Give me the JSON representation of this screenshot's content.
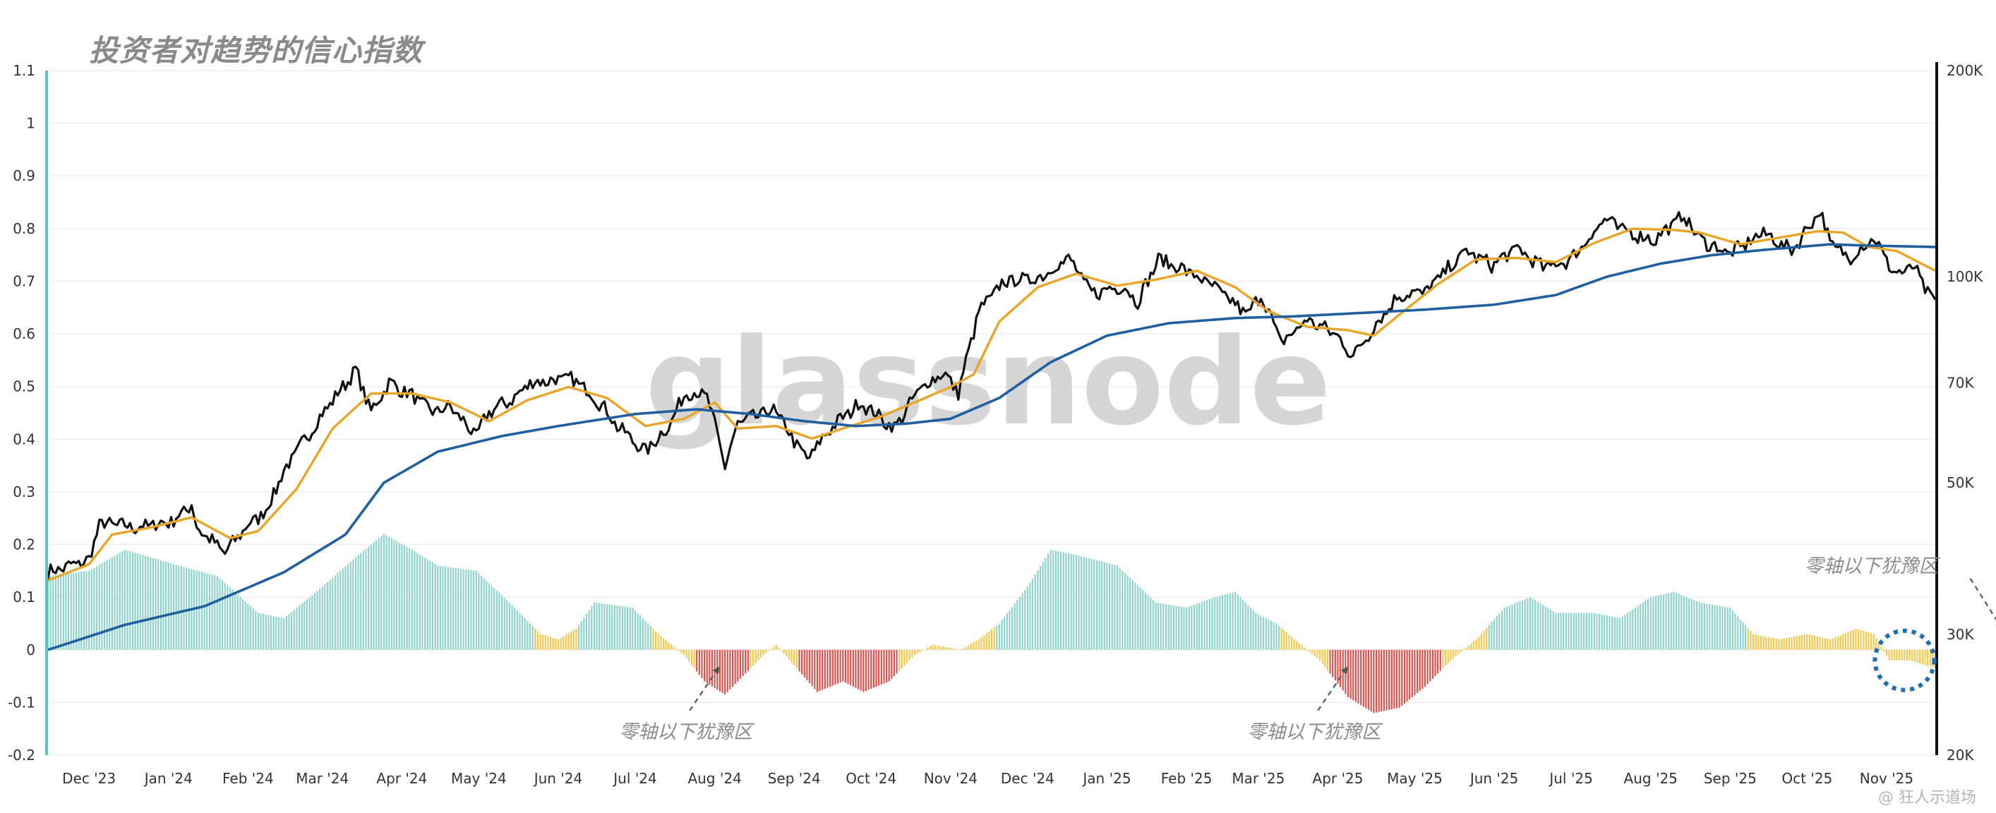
{
  "chart_data": {
    "type": "line",
    "title": "投资者对趋势的信心指数",
    "x_start": "2023-11-15",
    "x_end": "2025-11-20",
    "x_ticks": [
      "Dec '23",
      "Jan '24",
      "Feb '24",
      "Mar '24",
      "Apr '24",
      "May '24",
      "Jun '24",
      "Jul '24",
      "Aug '24",
      "Sep '24",
      "Oct '24",
      "Nov '24",
      "Dec '24",
      "Jan '25",
      "Feb '25",
      "Mar '25",
      "Apr '25",
      "May '25",
      "Jun '25",
      "Jul '25",
      "Aug '25",
      "Sep '25",
      "Oct '25",
      "Nov '25"
    ],
    "x_tick_dates": [
      "2023-12-01",
      "2024-01-01",
      "2024-02-01",
      "2024-03-01",
      "2024-04-01",
      "2024-05-01",
      "2024-06-01",
      "2024-07-01",
      "2024-08-01",
      "2024-09-01",
      "2024-10-01",
      "2024-11-01",
      "2024-12-01",
      "2025-01-01",
      "2025-02-01",
      "2025-03-01",
      "2025-04-01",
      "2025-05-01",
      "2025-06-01",
      "2025-07-01",
      "2025-08-01",
      "2025-09-01",
      "2025-10-01",
      "2025-11-01"
    ],
    "y_left": {
      "ticks": [
        "1.1",
        "1",
        "0.9",
        "0.8",
        "0.7",
        "0.6",
        "0.5",
        "0.4",
        "0.3",
        "0.2",
        "0.1",
        "0",
        "-0.1",
        "-0.2"
      ],
      "ylim": [
        -0.2,
        1.1
      ]
    },
    "y_right": {
      "ticks": [
        "200K",
        "100K",
        "70K",
        "50K",
        "30K",
        "20K"
      ],
      "tick_values": [
        200000,
        100000,
        70000,
        50000,
        30000,
        20000
      ],
      "ylim": [
        20000,
        200000
      ],
      "scale": "log"
    },
    "grid": true,
    "watermark": "glassnode",
    "colors": {
      "price": "#111111",
      "short_ma": "#e9a527",
      "long_ma": "#1f5fa0",
      "hist_positive": "#8fd3cc",
      "hist_hesitation": "#f2c94c",
      "hist_negative": "#d9534f",
      "left_axis_line": "#59c6be",
      "right_axis_line": "#111111",
      "highlight_circle": "#1f6fb2"
    },
    "series": [
      {
        "axis": "right",
        "color": "#111111",
        "points": [
          [
            "2023-11-15",
            37000
          ],
          [
            "2023-12-01",
            38500
          ],
          [
            "2023-12-05",
            43500
          ],
          [
            "2023-12-10",
            43500
          ],
          [
            "2023-12-20",
            43000
          ],
          [
            "2024-01-03",
            44000
          ],
          [
            "2024-01-10",
            46500
          ],
          [
            "2024-01-12",
            43000
          ],
          [
            "2024-01-23",
            39500
          ],
          [
            "2024-01-31",
            43000
          ],
          [
            "2024-02-08",
            45500
          ],
          [
            "2024-02-15",
            52000
          ],
          [
            "2024-02-28",
            61500
          ],
          [
            "2024-03-05",
            66000
          ],
          [
            "2024-03-14",
            73000
          ],
          [
            "2024-03-20",
            63500
          ],
          [
            "2024-03-27",
            70000
          ],
          [
            "2024-04-05",
            67000
          ],
          [
            "2024-04-13",
            63500
          ],
          [
            "2024-04-20",
            64500
          ],
          [
            "2024-04-30",
            58500
          ],
          [
            "2024-05-05",
            63500
          ],
          [
            "2024-05-15",
            66500
          ],
          [
            "2024-05-21",
            70000
          ],
          [
            "2024-06-05",
            71000
          ],
          [
            "2024-06-10",
            69500
          ],
          [
            "2024-06-18",
            65000
          ],
          [
            "2024-06-24",
            60500
          ],
          [
            "2024-07-05",
            55500
          ],
          [
            "2024-07-14",
            60500
          ],
          [
            "2024-07-21",
            68000
          ],
          [
            "2024-07-29",
            67000
          ],
          [
            "2024-08-05",
            53000
          ],
          [
            "2024-08-10",
            61000
          ],
          [
            "2024-08-24",
            64000
          ],
          [
            "2024-09-06",
            54000
          ],
          [
            "2024-09-15",
            60000
          ],
          [
            "2024-09-27",
            65500
          ],
          [
            "2024-10-10",
            60000
          ],
          [
            "2024-10-20",
            68500
          ],
          [
            "2024-10-29",
            72500
          ],
          [
            "2024-11-04",
            67800
          ],
          [
            "2024-11-12",
            89000
          ],
          [
            "2024-11-22",
            98500
          ],
          [
            "2024-12-05",
            99500
          ],
          [
            "2024-12-17",
            106500
          ],
          [
            "2024-12-26",
            94500
          ],
          [
            "2025-01-07",
            97000
          ],
          [
            "2025-01-13",
            92000
          ],
          [
            "2025-01-21",
            106000
          ],
          [
            "2025-01-31",
            102500
          ],
          [
            "2025-02-10",
            97500
          ],
          [
            "2025-02-25",
            88000
          ],
          [
            "2025-03-02",
            94500
          ],
          [
            "2025-03-10",
            80000
          ],
          [
            "2025-03-20",
            86500
          ],
          [
            "2025-03-31",
            82500
          ],
          [
            "2025-04-07",
            76500
          ],
          [
            "2025-04-15",
            84500
          ],
          [
            "2025-04-25",
            94000
          ],
          [
            "2025-05-05",
            95000
          ],
          [
            "2025-05-21",
            109000
          ],
          [
            "2025-05-31",
            104000
          ],
          [
            "2025-06-10",
            110000
          ],
          [
            "2025-06-20",
            103000
          ],
          [
            "2025-07-01",
            106000
          ],
          [
            "2025-07-14",
            121500
          ],
          [
            "2025-07-20",
            117500
          ],
          [
            "2025-08-02",
            113000
          ],
          [
            "2025-08-14",
            123000
          ],
          [
            "2025-08-20",
            113500
          ],
          [
            "2025-09-01",
            108000
          ],
          [
            "2025-09-14",
            116000
          ],
          [
            "2025-09-25",
            109000
          ],
          [
            "2025-10-06",
            125000
          ],
          [
            "2025-10-10",
            112000
          ],
          [
            "2025-10-17",
            106500
          ],
          [
            "2025-10-27",
            114000
          ],
          [
            "2025-11-04",
            101000
          ],
          [
            "2025-11-12",
            103000
          ],
          [
            "2025-11-18",
            93000
          ],
          [
            "2025-11-20",
            92000
          ]
        ]
      },
      {
        "axis": "right",
        "color": "#e9a527",
        "points": [
          [
            "2023-11-15",
            36000
          ],
          [
            "2023-12-01",
            38000
          ],
          [
            "2023-12-10",
            42000
          ],
          [
            "2023-12-25",
            43000
          ],
          [
            "2024-01-10",
            44500
          ],
          [
            "2024-01-25",
            41500
          ],
          [
            "2024-02-05",
            42500
          ],
          [
            "2024-02-20",
            49000
          ],
          [
            "2024-03-05",
            60000
          ],
          [
            "2024-03-20",
            67500
          ],
          [
            "2024-04-05",
            67500
          ],
          [
            "2024-04-20",
            65500
          ],
          [
            "2024-05-05",
            61500
          ],
          [
            "2024-05-20",
            66000
          ],
          [
            "2024-06-05",
            69000
          ],
          [
            "2024-06-20",
            66500
          ],
          [
            "2024-07-05",
            60500
          ],
          [
            "2024-07-20",
            62000
          ],
          [
            "2024-08-01",
            65500
          ],
          [
            "2024-08-10",
            60000
          ],
          [
            "2024-08-25",
            60500
          ],
          [
            "2024-09-08",
            58000
          ],
          [
            "2024-09-20",
            60000
          ],
          [
            "2024-10-05",
            62500
          ],
          [
            "2024-10-20",
            66000
          ],
          [
            "2024-11-01",
            69000
          ],
          [
            "2024-11-10",
            72000
          ],
          [
            "2024-11-20",
            86000
          ],
          [
            "2024-12-05",
            96500
          ],
          [
            "2024-12-20",
            101000
          ],
          [
            "2025-01-05",
            97000
          ],
          [
            "2025-01-20",
            99000
          ],
          [
            "2025-02-05",
            102000
          ],
          [
            "2025-02-20",
            96500
          ],
          [
            "2025-03-05",
            89000
          ],
          [
            "2025-03-20",
            84500
          ],
          [
            "2025-04-05",
            83500
          ],
          [
            "2025-04-15",
            82000
          ],
          [
            "2025-04-25",
            88000
          ],
          [
            "2025-05-10",
            97500
          ],
          [
            "2025-05-25",
            106000
          ],
          [
            "2025-06-10",
            106500
          ],
          [
            "2025-06-25",
            105000
          ],
          [
            "2025-07-10",
            112000
          ],
          [
            "2025-07-25",
            117500
          ],
          [
            "2025-08-10",
            117000
          ],
          [
            "2025-08-20",
            116000
          ],
          [
            "2025-09-05",
            111500
          ],
          [
            "2025-09-20",
            114000
          ],
          [
            "2025-10-05",
            116500
          ],
          [
            "2025-10-15",
            116000
          ],
          [
            "2025-10-25",
            110500
          ],
          [
            "2025-11-05",
            109000
          ],
          [
            "2025-11-20",
            102000
          ]
        ]
      },
      {
        "axis": "right",
        "color": "#1f5fa0",
        "points": [
          [
            "2023-11-15",
            28500
          ],
          [
            "2023-12-15",
            31000
          ],
          [
            "2024-01-15",
            33000
          ],
          [
            "2024-02-15",
            37000
          ],
          [
            "2024-03-10",
            42000
          ],
          [
            "2024-03-25",
            50000
          ],
          [
            "2024-04-15",
            55500
          ],
          [
            "2024-05-10",
            58500
          ],
          [
            "2024-06-01",
            60500
          ],
          [
            "2024-07-01",
            63000
          ],
          [
            "2024-07-25",
            64000
          ],
          [
            "2024-08-15",
            63000
          ],
          [
            "2024-09-05",
            61500
          ],
          [
            "2024-09-25",
            60500
          ],
          [
            "2024-10-15",
            61000
          ],
          [
            "2024-11-01",
            62000
          ],
          [
            "2024-11-20",
            66500
          ],
          [
            "2024-12-10",
            75000
          ],
          [
            "2025-01-01",
            82000
          ],
          [
            "2025-01-25",
            85500
          ],
          [
            "2025-02-20",
            87000
          ],
          [
            "2025-03-15",
            87500
          ],
          [
            "2025-04-10",
            88500
          ],
          [
            "2025-05-05",
            89500
          ],
          [
            "2025-06-01",
            91000
          ],
          [
            "2025-06-25",
            94000
          ],
          [
            "2025-07-15",
            100000
          ],
          [
            "2025-08-05",
            104500
          ],
          [
            "2025-08-25",
            107500
          ],
          [
            "2025-09-15",
            109500
          ],
          [
            "2025-10-10",
            111500
          ],
          [
            "2025-10-25",
            111000
          ],
          [
            "2025-11-20",
            110500
          ]
        ]
      },
      {
        "axis": "left",
        "type": "bar",
        "points": [
          [
            "2023-11-15",
            0.14
          ],
          [
            "2023-12-01",
            0.15
          ],
          [
            "2023-12-15",
            0.19
          ],
          [
            "2024-01-05",
            0.16
          ],
          [
            "2024-01-20",
            0.14
          ],
          [
            "2024-02-05",
            0.07
          ],
          [
            "2024-02-15",
            0.06
          ],
          [
            "2024-03-01",
            0.12
          ],
          [
            "2024-03-15",
            0.18
          ],
          [
            "2024-03-25",
            0.22
          ],
          [
            "2024-04-05",
            0.19
          ],
          [
            "2024-04-15",
            0.16
          ],
          [
            "2024-04-30",
            0.15
          ],
          [
            "2024-05-15",
            0.08
          ],
          [
            "2024-05-25",
            0.03
          ],
          [
            "2024-06-01",
            0.02
          ],
          [
            "2024-06-08",
            0.04
          ],
          [
            "2024-06-15",
            0.09
          ],
          [
            "2024-06-30",
            0.08
          ],
          [
            "2024-07-10",
            0.03
          ],
          [
            "2024-07-20",
            -0.01
          ],
          [
            "2024-07-28",
            -0.06
          ],
          [
            "2024-08-05",
            -0.085
          ],
          [
            "2024-08-12",
            -0.05
          ],
          [
            "2024-08-20",
            -0.01
          ],
          [
            "2024-08-25",
            0.01
          ],
          [
            "2024-09-01",
            -0.03
          ],
          [
            "2024-09-10",
            -0.08
          ],
          [
            "2024-09-20",
            -0.06
          ],
          [
            "2024-09-28",
            -0.08
          ],
          [
            "2024-10-08",
            -0.06
          ],
          [
            "2024-10-18",
            -0.01
          ],
          [
            "2024-10-25",
            0.01
          ],
          [
            "2024-11-05",
            0.0
          ],
          [
            "2024-11-12",
            0.02
          ],
          [
            "2024-11-20",
            0.05
          ],
          [
            "2024-12-01",
            0.12
          ],
          [
            "2024-12-10",
            0.19
          ],
          [
            "2024-12-20",
            0.18
          ],
          [
            "2025-01-05",
            0.16
          ],
          [
            "2025-01-20",
            0.09
          ],
          [
            "2025-02-01",
            0.08
          ],
          [
            "2025-02-12",
            0.1
          ],
          [
            "2025-02-20",
            0.11
          ],
          [
            "2025-02-28",
            0.07
          ],
          [
            "2025-03-08",
            0.05
          ],
          [
            "2025-03-15",
            0.02
          ],
          [
            "2025-03-25",
            -0.02
          ],
          [
            "2025-04-05",
            -0.09
          ],
          [
            "2025-04-15",
            -0.12
          ],
          [
            "2025-04-25",
            -0.11
          ],
          [
            "2025-05-05",
            -0.07
          ],
          [
            "2025-05-15",
            -0.02
          ],
          [
            "2025-05-25",
            0.02
          ],
          [
            "2025-06-05",
            0.08
          ],
          [
            "2025-06-15",
            0.1
          ],
          [
            "2025-06-25",
            0.07
          ],
          [
            "2025-07-10",
            0.07
          ],
          [
            "2025-07-20",
            0.06
          ],
          [
            "2025-08-01",
            0.1
          ],
          [
            "2025-08-10",
            0.11
          ],
          [
            "2025-08-20",
            0.09
          ],
          [
            "2025-09-01",
            0.08
          ],
          [
            "2025-09-10",
            0.03
          ],
          [
            "2025-09-20",
            0.02
          ],
          [
            "2025-10-01",
            0.03
          ],
          [
            "2025-10-10",
            0.02
          ],
          [
            "2025-10-20",
            0.04
          ],
          [
            "2025-10-27",
            0.03
          ],
          [
            "2025-11-02",
            -0.02
          ],
          [
            "2025-11-10",
            -0.02
          ],
          [
            "2025-11-20",
            -0.035
          ]
        ]
      }
    ],
    "annotations": [
      {
        "text": "零轴以下犹豫区",
        "date": "2024-07-25",
        "value": -0.15
      },
      {
        "text": "零轴以下犹豫区",
        "date": "2025-03-27",
        "value": -0.15
      },
      {
        "text": "零轴以下犹豫区",
        "date": "2025-11-02",
        "value": 0.165
      }
    ]
  },
  "footer": "@ 狂人示道场"
}
